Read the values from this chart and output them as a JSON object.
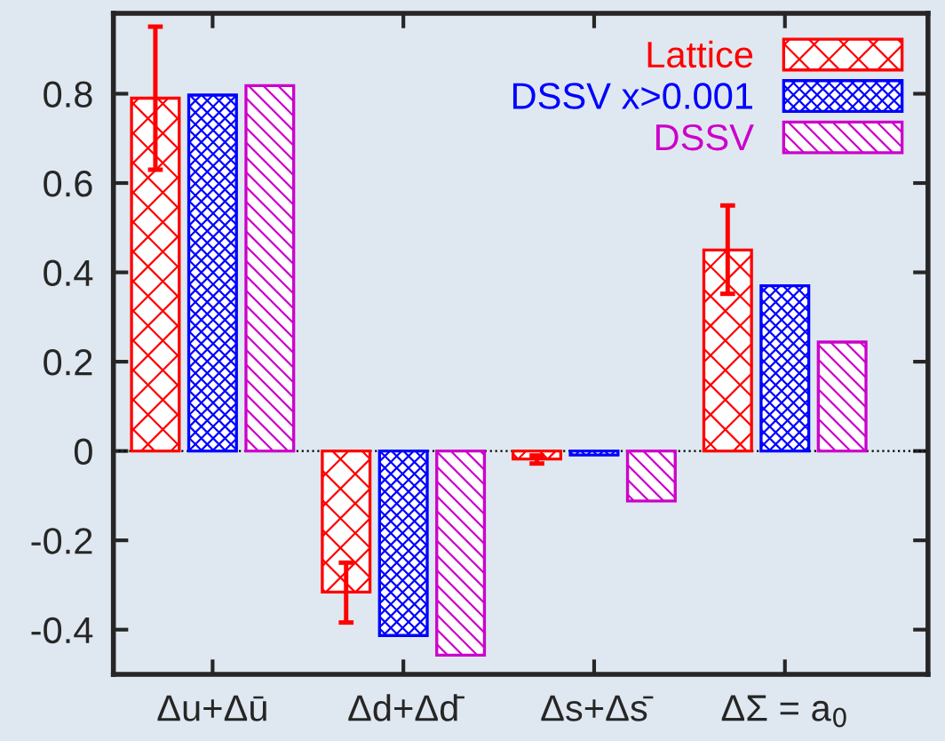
{
  "chart_data": {
    "type": "bar",
    "categories": [
      "Δu+Δū",
      "Δd+Δd̄",
      "Δs+Δs̄",
      "ΔΣ = a$_{0}$"
    ],
    "series": [
      {
        "name": "Lattice",
        "color": "#ff0000",
        "values": [
          0.79,
          -0.316,
          -0.018,
          0.45
        ],
        "errors": [
          [
            0.63,
            0.95
          ],
          [
            -0.384,
            -0.25
          ],
          [
            -0.028,
            -0.01
          ],
          [
            0.352,
            0.55
          ]
        ]
      },
      {
        "name": "DSSV x>0.001",
        "color": "#0000ff",
        "values": [
          0.797,
          -0.413,
          -0.009,
          0.37
        ]
      },
      {
        "name": "DSSV",
        "color": "#cc00cc",
        "values": [
          0.818,
          -0.457,
          -0.112,
          0.244
        ]
      }
    ],
    "ylim": [
      -0.5,
      0.98
    ],
    "yticks": [
      -0.4,
      -0.2,
      0,
      0.2,
      0.4,
      0.6,
      0.8
    ],
    "ref_lines": [
      {
        "axis": "y",
        "value": 0,
        "line_style": "dotted",
        "color": "#000000"
      }
    ],
    "legend": "top right",
    "grid": false
  }
}
